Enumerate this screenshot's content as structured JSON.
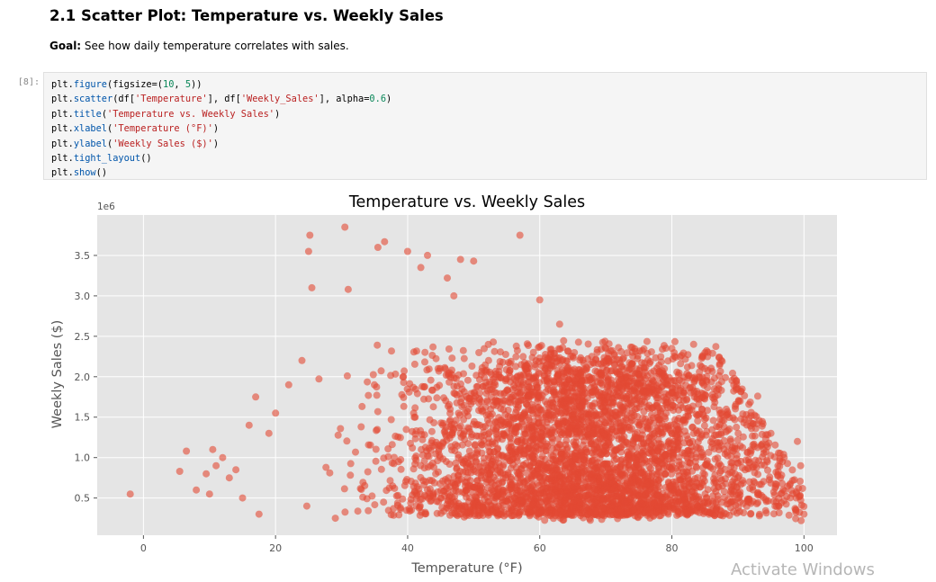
{
  "markdown": {
    "heading": "2.1 Scatter Plot: Temperature vs. Weekly Sales",
    "goal_label": "Goal:",
    "goal_text": " See how daily temperature correlates with sales."
  },
  "cell": {
    "prompt": "[8]:",
    "lines": [
      [
        {
          "t": "plt."
        },
        {
          "t": "figure",
          "c": "func"
        },
        {
          "t": "(figsize=("
        },
        {
          "t": "10",
          "c": "num"
        },
        {
          "t": ", "
        },
        {
          "t": "5",
          "c": "num"
        },
        {
          "t": "))"
        }
      ],
      [
        {
          "t": "plt."
        },
        {
          "t": "scatter",
          "c": "func"
        },
        {
          "t": "(df["
        },
        {
          "t": "'Temperature'",
          "c": "str"
        },
        {
          "t": "], df["
        },
        {
          "t": "'Weekly_Sales'",
          "c": "str"
        },
        {
          "t": "], alpha="
        },
        {
          "t": "0.6",
          "c": "num"
        },
        {
          "t": ")"
        }
      ],
      [
        {
          "t": "plt."
        },
        {
          "t": "title",
          "c": "func"
        },
        {
          "t": "("
        },
        {
          "t": "'Temperature vs. Weekly Sales'",
          "c": "str"
        },
        {
          "t": ")"
        }
      ],
      [
        {
          "t": "plt."
        },
        {
          "t": "xlabel",
          "c": "func"
        },
        {
          "t": "("
        },
        {
          "t": "'Temperature (°F)'",
          "c": "str"
        },
        {
          "t": ")"
        }
      ],
      [
        {
          "t": "plt."
        },
        {
          "t": "ylabel",
          "c": "func"
        },
        {
          "t": "("
        },
        {
          "t": "'Weekly Sales ($)'",
          "c": "str"
        },
        {
          "t": ")"
        }
      ],
      [
        {
          "t": "plt."
        },
        {
          "t": "tight_layout",
          "c": "func"
        },
        {
          "t": "()"
        }
      ],
      [
        {
          "t": "plt."
        },
        {
          "t": "show",
          "c": "func"
        },
        {
          "t": "()"
        }
      ]
    ]
  },
  "chart_data": {
    "type": "scatter",
    "title": "Temperature vs. Weekly Sales",
    "xlabel": "Temperature (°F)",
    "ylabel": "Weekly Sales ($)",
    "offset_text": "1e6",
    "xlim": [
      -7,
      105
    ],
    "ylim": [
      0.04,
      4.0
    ],
    "xticks": [
      0,
      20,
      40,
      60,
      80,
      100
    ],
    "xtick_labels": [
      "0",
      "20",
      "40",
      "60",
      "80",
      "100"
    ],
    "yticks": [
      0.5,
      1.0,
      1.5,
      2.0,
      2.5,
      3.0,
      3.5
    ],
    "ytick_labels": [
      "0.5",
      "1.0",
      "1.5",
      "2.0",
      "2.5",
      "3.0",
      "3.5"
    ],
    "grid": true,
    "point_color": "#e24a33",
    "alpha": 0.6,
    "x": [
      -2,
      5.5,
      6.5,
      8,
      9.5,
      10,
      10.5,
      11,
      12,
      13,
      14,
      15,
      16,
      17,
      17.5,
      19,
      20,
      22,
      24,
      25,
      25.2,
      25.5,
      30.5,
      31,
      35.5,
      36.5,
      40,
      42,
      43,
      46,
      47,
      48,
      50,
      57,
      60,
      63,
      70,
      80,
      85,
      90,
      95,
      99,
      100,
      99.5,
      97,
      93
    ],
    "y": [
      0.55,
      0.83,
      1.08,
      0.6,
      0.8,
      0.55,
      1.1,
      0.9,
      1.0,
      0.75,
      0.85,
      0.5,
      1.4,
      1.75,
      0.3,
      1.3,
      1.55,
      1.9,
      2.2,
      3.55,
      3.75,
      3.1,
      3.85,
      3.08,
      3.6,
      3.67,
      3.55,
      3.35,
      3.5,
      3.22,
      3.0,
      3.45,
      3.43,
      3.75,
      2.95,
      2.65,
      2.35,
      2.35,
      2.1,
      1.85,
      1.3,
      1.2,
      0.3,
      0.9,
      1.0,
      1.76
    ],
    "notes_dense_cloud": [
      [
        20,
        92,
        0.25,
        2.3
      ]
    ]
  },
  "watermark": "Activate Windows"
}
